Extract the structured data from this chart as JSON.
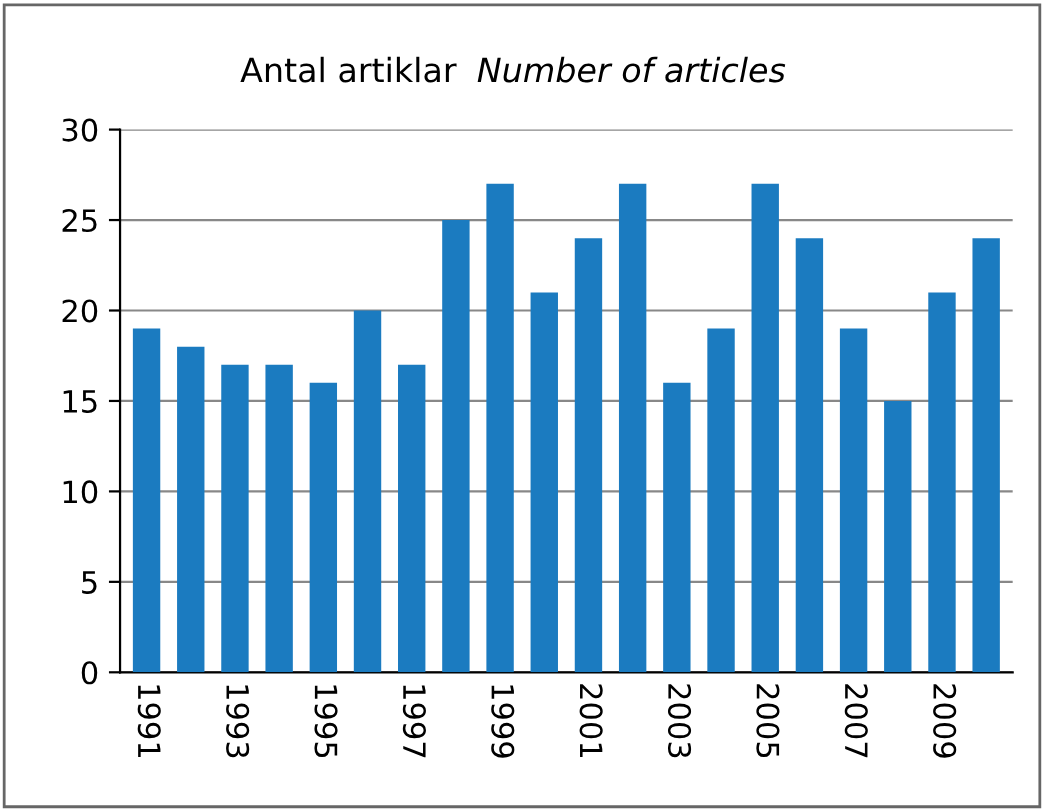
{
  "chart_data": {
    "type": "bar",
    "title": "Antal artiklar",
    "subtitle": "Number of articles",
    "categories": [
      "1991",
      null,
      "1993",
      null,
      "1995",
      null,
      "1997",
      null,
      "1999",
      null,
      "2001",
      null,
      "2003",
      null,
      "2005",
      null,
      "2007",
      null,
      "2009",
      null
    ],
    "values": [
      19,
      18,
      17,
      17,
      16,
      20,
      17,
      25,
      27,
      21,
      24,
      27,
      16,
      19,
      27,
      24,
      19,
      15,
      21,
      24
    ],
    "color": "#1b7bc0",
    "ylim": [
      0,
      30
    ],
    "yticks": [
      0,
      5,
      10,
      15,
      20,
      25,
      30
    ],
    "grid": "y",
    "legend": false
  }
}
